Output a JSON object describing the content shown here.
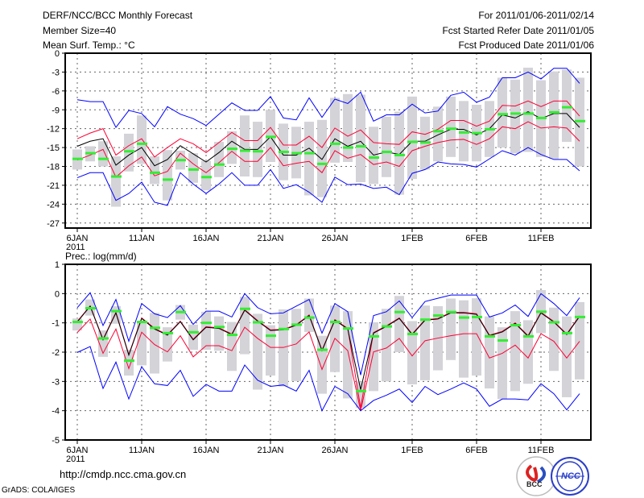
{
  "header": {
    "title": "DERF/NCC/BCC Monthly Forecast",
    "member_size": "Member Size=40",
    "period": "For 2011/01/06-2011/02/14",
    "started": "Fcst Started Refer Date 2011/01/05",
    "produced": "Fcst Produced Date 2011/01/06"
  },
  "footer": {
    "url": "http://cmdp.ncc.cma.gov.cn",
    "grads": "GrADS: COLA/IGES",
    "logo_bcc": "BCC",
    "logo_ncc": "NCC"
  },
  "colors": {
    "envelope": "#0000ff",
    "spread": "#ff0033",
    "mean": "#000000",
    "member": "#33ee33",
    "box": "#d3d3d8"
  },
  "chart_data": [
    {
      "type": "line",
      "title": "Mean Surf. Temp.: °C",
      "xlabel": "",
      "ylabel": "",
      "ylim": [
        -27.8,
        0
      ],
      "yticks": [
        0,
        -3,
        -6,
        -9,
        -12,
        -15,
        -18,
        -21,
        -24,
        -27
      ],
      "ytick_labels": [
        "0",
        "-3",
        "-6",
        "-9",
        "-12",
        "-15",
        "-18",
        "-21",
        "-24",
        "-27"
      ],
      "xtick_days": [
        0,
        5,
        10,
        15,
        20,
        26,
        31,
        36
      ],
      "xtick_labels": [
        "6JAN",
        "11JAN",
        "16JAN",
        "21JAN",
        "26JAN",
        "1FEB",
        "6FEB",
        "11FEB"
      ],
      "year_label": "2011",
      "grid": true,
      "days": 40,
      "series": [
        {
          "name": "max",
          "color": "envelope",
          "values": [
            -7.4,
            -7.7,
            -7.7,
            -11.8,
            -9.1,
            -9.6,
            -11.7,
            -8.5,
            -9.7,
            -10.4,
            -11.5,
            -9.7,
            -7.9,
            -9.1,
            -9.1,
            -6.9,
            -10.3,
            -10.6,
            -7.1,
            -10.2,
            -7.3,
            -8.0,
            -6.2,
            -10.8,
            -9.8,
            -9.8,
            -8.1,
            -9.5,
            -9.2,
            -6.7,
            -6.2,
            -7.8,
            -7.0,
            -3.9,
            -3.9,
            -3.0,
            -4.1,
            -2.4,
            -2.4,
            -4.8
          ]
        },
        {
          "name": "upper",
          "color": "spread",
          "values": [
            -13.6,
            -12.7,
            -12.0,
            -16.2,
            -14.7,
            -13.6,
            -16.5,
            -15.0,
            -13.6,
            -14.4,
            -15.8,
            -14.2,
            -12.6,
            -13.9,
            -13.9,
            -11.8,
            -14.6,
            -14.6,
            -13.2,
            -15.0,
            -11.9,
            -13.2,
            -12.2,
            -14.2,
            -14.4,
            -14.5,
            -12.5,
            -12.9,
            -12.1,
            -10.7,
            -10.7,
            -11.6,
            -10.8,
            -8.3,
            -8.4,
            -7.6,
            -8.5,
            -7.6,
            -7.6,
            -10.0
          ]
        },
        {
          "name": "mean",
          "color": "mean",
          "values": [
            -14.8,
            -14.0,
            -13.6,
            -17.8,
            -16.2,
            -15.0,
            -17.9,
            -16.9,
            -14.7,
            -16.0,
            -17.3,
            -15.8,
            -14.0,
            -15.3,
            -15.3,
            -13.3,
            -16.2,
            -16.2,
            -15.1,
            -16.9,
            -13.6,
            -14.8,
            -14.0,
            -16.2,
            -15.7,
            -16.1,
            -14.0,
            -14.0,
            -13.0,
            -12.1,
            -12.1,
            -13.0,
            -12.0,
            -9.8,
            -10.3,
            -9.3,
            -10.4,
            -9.6,
            -9.6,
            -11.8
          ]
        },
        {
          "name": "lower",
          "color": "spread",
          "values": [
            -17.0,
            -16.2,
            -15.3,
            -19.7,
            -17.9,
            -16.5,
            -19.5,
            -18.8,
            -15.9,
            -17.6,
            -19.0,
            -17.4,
            -15.6,
            -17.2,
            -17.2,
            -15.0,
            -17.9,
            -17.5,
            -17.2,
            -19.0,
            -15.5,
            -16.7,
            -16.1,
            -17.7,
            -17.3,
            -18.0,
            -15.5,
            -14.8,
            -14.2,
            -13.8,
            -13.7,
            -14.5,
            -13.6,
            -11.7,
            -12.0,
            -10.9,
            -11.9,
            -11.7,
            -11.9,
            -14.0
          ]
        },
        {
          "name": "min",
          "color": "envelope",
          "values": [
            -19.8,
            -19.0,
            -19.0,
            -23.4,
            -22.3,
            -20.5,
            -23.7,
            -24.2,
            -19.0,
            -20.8,
            -22.3,
            -20.8,
            -19.0,
            -21.0,
            -21.0,
            -18.5,
            -21.5,
            -20.9,
            -22.1,
            -23.7,
            -19.7,
            -20.9,
            -20.8,
            -21.5,
            -21.3,
            -22.5,
            -19.1,
            -18.5,
            -17.3,
            -17.6,
            -17.7,
            -18.1,
            -16.8,
            -15.5,
            -16.2,
            -15.0,
            -16.1,
            -16.9,
            -16.9,
            -18.7
          ]
        }
      ],
      "markers": [
        -16.8,
        -15.9,
        -16.8,
        -19.6,
        -15.6,
        -14.4,
        -19.0,
        -20.1,
        -17.0,
        -18.5,
        -19.7,
        -17.7,
        -15.2,
        -15.5,
        -15.6,
        -13.3,
        -15.7,
        -15.9,
        -15.9,
        -17.6,
        -14.4,
        -15.0,
        -14.8,
        -16.6,
        -15.7,
        -16.2,
        -14.1,
        -14.2,
        -12.4,
        -12.0,
        -12.6,
        -12.7,
        -12.1,
        -9.7,
        -9.6,
        -9.6,
        -10.3,
        -9.4,
        -8.6,
        -10.8
      ],
      "boxes": [
        [
          -15.3,
          -18.5
        ],
        [
          -14.8,
          -17.2
        ],
        [
          -14.0,
          -18.0
        ],
        [
          -16.4,
          -24.4
        ],
        [
          -12.8,
          -18.8
        ],
        [
          -9.9,
          -17.6
        ],
        [
          -16.4,
          -20.8
        ],
        [
          -15.4,
          -23.4
        ],
        [
          -15.5,
          -18.5
        ],
        [
          -15.9,
          -20.6
        ],
        [
          -17.1,
          -21.8
        ],
        [
          -14.1,
          -19.7
        ],
        [
          -12.4,
          -17.6
        ],
        [
          -9.9,
          -19.6
        ],
        [
          -10.9,
          -19.7
        ],
        [
          -9.0,
          -17.3
        ],
        [
          -11.2,
          -20.2
        ],
        [
          -11.7,
          -19.9
        ],
        [
          -10.9,
          -22.6
        ],
        [
          -10.6,
          -22.9
        ],
        [
          -7.1,
          -17.4
        ],
        [
          -6.5,
          -17.3
        ],
        [
          -6.6,
          -20.5
        ],
        [
          -11.7,
          -20.8
        ],
        [
          -10.1,
          -19.7
        ],
        [
          -9.3,
          -22.5
        ],
        [
          -6.9,
          -20.0
        ],
        [
          -10.1,
          -18.5
        ],
        [
          -8.5,
          -17.2
        ],
        [
          -6.9,
          -16.5
        ],
        [
          -7.6,
          -17.2
        ],
        [
          -8.2,
          -17.2
        ],
        [
          -7.6,
          -16.5
        ],
        [
          -3.9,
          -15.0
        ],
        [
          -4.2,
          -15.9
        ],
        [
          -2.3,
          -15.7
        ],
        [
          -4.3,
          -16.5
        ],
        [
          -2.9,
          -16.8
        ],
        [
          -2.6,
          -14.1
        ],
        [
          -3.9,
          -18.0
        ]
      ]
    },
    {
      "type": "line",
      "title": "Prec.: log(mm/d)",
      "xlabel": "",
      "ylabel": "",
      "ylim": [
        -5,
        1
      ],
      "yticks": [
        1,
        0,
        -1,
        -2,
        -3,
        -4,
        -5
      ],
      "ytick_labels": [
        "1",
        "0",
        "-1",
        "-2",
        "-3",
        "-4",
        "-5"
      ],
      "xtick_days": [
        0,
        5,
        10,
        15,
        20,
        26,
        31,
        36
      ],
      "xtick_labels": [
        "6JAN",
        "11JAN",
        "16JAN",
        "21JAN",
        "26JAN",
        "1FEB",
        "6FEB",
        "11FEB"
      ],
      "year_label": "2011",
      "grid": true,
      "days": 40,
      "series": [
        {
          "name": "max",
          "color": "envelope",
          "values": [
            -0.48,
            0.03,
            -1.09,
            -0.2,
            -1.63,
            -0.34,
            -0.69,
            -0.82,
            -0.41,
            -1.05,
            -0.6,
            -0.6,
            -0.8,
            0.0,
            -0.48,
            -0.69,
            -0.66,
            -0.43,
            -0.2,
            -1.35,
            -0.34,
            -0.62,
            -2.78,
            -0.75,
            -0.62,
            -0.25,
            -0.82,
            -0.27,
            -0.16,
            -0.05,
            -0.05,
            -0.05,
            -0.8,
            -0.66,
            -0.39,
            -0.78,
            0.0,
            -0.34,
            -0.75,
            -0.14
          ]
        },
        {
          "name": "upper",
          "color": "spread",
          "values": [
            -0.95,
            -0.42,
            -1.56,
            -0.64,
            -2.08,
            -0.83,
            -1.19,
            -1.4,
            -0.94,
            -1.56,
            -1.13,
            -1.17,
            -1.38,
            -0.55,
            -0.92,
            -1.24,
            -1.22,
            -1.06,
            -0.73,
            -1.93,
            -0.89,
            -1.19,
            -3.9,
            -1.33,
            -1.1,
            -0.83,
            -1.38,
            -0.89,
            -0.85,
            -0.64,
            -0.64,
            -0.69,
            -1.42,
            -1.29,
            -1.0,
            -1.44,
            -0.64,
            -0.95,
            -1.38,
            -0.76
          ]
        },
        {
          "name": "mean",
          "color": "mean",
          "values": [
            -0.97,
            -0.43,
            -1.58,
            -0.66,
            -2.1,
            -0.85,
            -1.21,
            -1.42,
            -0.96,
            -1.58,
            -1.15,
            -1.19,
            -1.4,
            -0.57,
            -0.94,
            -1.26,
            -1.24,
            -1.08,
            -0.75,
            -1.95,
            -0.91,
            -1.21,
            -3.28,
            -1.35,
            -1.12,
            -0.85,
            -1.4,
            -0.91,
            -0.87,
            -0.66,
            -0.66,
            -0.71,
            -1.44,
            -1.31,
            -1.02,
            -1.46,
            -0.66,
            -0.97,
            -1.4,
            -0.78
          ]
        },
        {
          "name": "lower",
          "color": "spread",
          "values": [
            -1.33,
            -0.87,
            -2.04,
            -1.21,
            -2.56,
            -1.32,
            -1.74,
            -1.99,
            -1.44,
            -2.16,
            -1.78,
            -1.78,
            -1.95,
            -1.15,
            -1.53,
            -1.84,
            -1.84,
            -1.72,
            -1.31,
            -2.59,
            -1.53,
            -1.95,
            -4.0,
            -1.99,
            -1.86,
            -1.53,
            -2.13,
            -1.61,
            -1.52,
            -1.44,
            -1.37,
            -1.37,
            -2.2,
            -2.04,
            -1.76,
            -2.2,
            -1.37,
            -1.63,
            -2.2,
            -1.63
          ]
        },
        {
          "name": "min",
          "color": "envelope",
          "values": [
            -2.01,
            -1.81,
            -3.24,
            -2.34,
            -3.6,
            -2.5,
            -3.08,
            -3.14,
            -2.62,
            -3.51,
            -3.1,
            -3.33,
            -3.33,
            -2.44,
            -2.96,
            -3.17,
            -3.12,
            -3.33,
            -2.62,
            -4.0,
            -3.17,
            -3.42,
            -4.0,
            -3.65,
            -3.47,
            -3.26,
            -3.72,
            -3.17,
            -3.45,
            -3.26,
            -3.05,
            -3.26,
            -3.85,
            -3.6,
            -3.6,
            -3.63,
            -3.08,
            -3.42,
            -3.97,
            -3.42
          ]
        }
      ],
      "markers": [
        -0.97,
        -0.5,
        -1.53,
        -0.6,
        -2.29,
        -0.97,
        -1.17,
        -1.35,
        -0.63,
        -1.32,
        -1.0,
        -1.14,
        -1.41,
        -0.52,
        -0.98,
        -1.44,
        -1.21,
        -1.06,
        -0.82,
        -1.92,
        -0.97,
        -1.19,
        -3.33,
        -1.46,
        -1.12,
        -0.63,
        -1.38,
        -0.89,
        -0.75,
        -0.63,
        -0.82,
        -0.8,
        -1.46,
        -1.6,
        -1.08,
        -1.46,
        -0.62,
        -0.98,
        -1.35,
        -0.8
      ],
      "boxes": [
        [
          -0.85,
          -1.26
        ],
        [
          -0.2,
          -0.75
        ],
        [
          -1.26,
          -2.16
        ],
        [
          -0.43,
          -1.03
        ],
        [
          -1.92,
          -2.8
        ],
        [
          -0.94,
          -2.45
        ],
        [
          -0.66,
          -2.73
        ],
        [
          -1.15,
          -2.32
        ],
        [
          -0.39,
          -0.89
        ],
        [
          -1.06,
          -1.92
        ],
        [
          -0.62,
          -1.92
        ],
        [
          -0.78,
          -1.95
        ],
        [
          -0.97,
          -2.64
        ],
        [
          -0.11,
          -2.07
        ],
        [
          -0.69,
          -3.28
        ],
        [
          -1.08,
          -2.8
        ],
        [
          -0.54,
          -3.17
        ],
        [
          -0.52,
          -2.99
        ],
        [
          -0.17,
          -1.31
        ],
        [
          -1.44,
          -3.42
        ],
        [
          -0.41,
          -2.68
        ],
        [
          -0.6,
          -3.58
        ],
        [
          -3.0,
          -3.9
        ],
        [
          -0.98,
          -3.33
        ],
        [
          -0.52,
          -3.0
        ],
        [
          -0.08,
          -2.0
        ],
        [
          -0.94,
          -3.1
        ],
        [
          -0.41,
          -2.96
        ],
        [
          -0.43,
          -2.62
        ],
        [
          -0.17,
          -2.27
        ],
        [
          -0.23,
          -2.87
        ],
        [
          -0.16,
          -2.8
        ],
        [
          -0.78,
          -3.24
        ],
        [
          -1.15,
          -3.6
        ],
        [
          -0.6,
          -3.33
        ],
        [
          -0.91,
          -3.08
        ],
        [
          0.12,
          -1.35
        ],
        [
          -0.48,
          -2.64
        ],
        [
          -0.78,
          -3.54
        ],
        [
          -0.29,
          -2.93
        ]
      ]
    }
  ]
}
